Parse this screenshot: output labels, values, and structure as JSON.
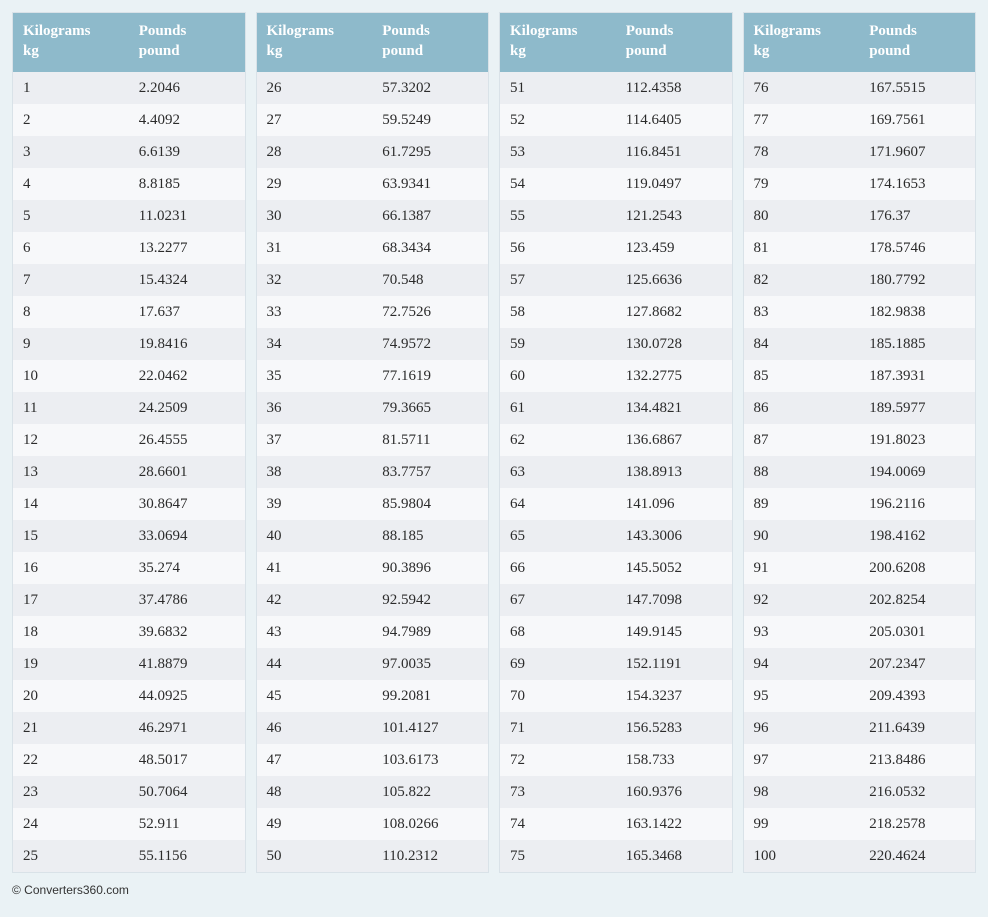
{
  "columns": {
    "kg": {
      "title": "Kilograms",
      "unit": "kg"
    },
    "lb": {
      "title": "Pounds",
      "unit": "pound"
    }
  },
  "panels": [
    [
      {
        "kg": "1",
        "lb": "2.2046"
      },
      {
        "kg": "2",
        "lb": "4.4092"
      },
      {
        "kg": "3",
        "lb": "6.6139"
      },
      {
        "kg": "4",
        "lb": "8.8185"
      },
      {
        "kg": "5",
        "lb": "11.0231"
      },
      {
        "kg": "6",
        "lb": "13.2277"
      },
      {
        "kg": "7",
        "lb": "15.4324"
      },
      {
        "kg": "8",
        "lb": "17.637"
      },
      {
        "kg": "9",
        "lb": "19.8416"
      },
      {
        "kg": "10",
        "lb": "22.0462"
      },
      {
        "kg": "11",
        "lb": "24.2509"
      },
      {
        "kg": "12",
        "lb": "26.4555"
      },
      {
        "kg": "13",
        "lb": "28.6601"
      },
      {
        "kg": "14",
        "lb": "30.8647"
      },
      {
        "kg": "15",
        "lb": "33.0694"
      },
      {
        "kg": "16",
        "lb": "35.274"
      },
      {
        "kg": "17",
        "lb": "37.4786"
      },
      {
        "kg": "18",
        "lb": "39.6832"
      },
      {
        "kg": "19",
        "lb": "41.8879"
      },
      {
        "kg": "20",
        "lb": "44.0925"
      },
      {
        "kg": "21",
        "lb": "46.2971"
      },
      {
        "kg": "22",
        "lb": "48.5017"
      },
      {
        "kg": "23",
        "lb": "50.7064"
      },
      {
        "kg": "24",
        "lb": "52.911"
      },
      {
        "kg": "25",
        "lb": "55.1156"
      }
    ],
    [
      {
        "kg": "26",
        "lb": "57.3202"
      },
      {
        "kg": "27",
        "lb": "59.5249"
      },
      {
        "kg": "28",
        "lb": "61.7295"
      },
      {
        "kg": "29",
        "lb": "63.9341"
      },
      {
        "kg": "30",
        "lb": "66.1387"
      },
      {
        "kg": "31",
        "lb": "68.3434"
      },
      {
        "kg": "32",
        "lb": "70.548"
      },
      {
        "kg": "33",
        "lb": "72.7526"
      },
      {
        "kg": "34",
        "lb": "74.9572"
      },
      {
        "kg": "35",
        "lb": "77.1619"
      },
      {
        "kg": "36",
        "lb": "79.3665"
      },
      {
        "kg": "37",
        "lb": "81.5711"
      },
      {
        "kg": "38",
        "lb": "83.7757"
      },
      {
        "kg": "39",
        "lb": "85.9804"
      },
      {
        "kg": "40",
        "lb": "88.185"
      },
      {
        "kg": "41",
        "lb": "90.3896"
      },
      {
        "kg": "42",
        "lb": "92.5942"
      },
      {
        "kg": "43",
        "lb": "94.7989"
      },
      {
        "kg": "44",
        "lb": "97.0035"
      },
      {
        "kg": "45",
        "lb": "99.2081"
      },
      {
        "kg": "46",
        "lb": "101.4127"
      },
      {
        "kg": "47",
        "lb": "103.6173"
      },
      {
        "kg": "48",
        "lb": "105.822"
      },
      {
        "kg": "49",
        "lb": "108.0266"
      },
      {
        "kg": "50",
        "lb": "110.2312"
      }
    ],
    [
      {
        "kg": "51",
        "lb": "112.4358"
      },
      {
        "kg": "52",
        "lb": "114.6405"
      },
      {
        "kg": "53",
        "lb": "116.8451"
      },
      {
        "kg": "54",
        "lb": "119.0497"
      },
      {
        "kg": "55",
        "lb": "121.2543"
      },
      {
        "kg": "56",
        "lb": "123.459"
      },
      {
        "kg": "57",
        "lb": "125.6636"
      },
      {
        "kg": "58",
        "lb": "127.8682"
      },
      {
        "kg": "59",
        "lb": "130.0728"
      },
      {
        "kg": "60",
        "lb": "132.2775"
      },
      {
        "kg": "61",
        "lb": "134.4821"
      },
      {
        "kg": "62",
        "lb": "136.6867"
      },
      {
        "kg": "63",
        "lb": "138.8913"
      },
      {
        "kg": "64",
        "lb": "141.096"
      },
      {
        "kg": "65",
        "lb": "143.3006"
      },
      {
        "kg": "66",
        "lb": "145.5052"
      },
      {
        "kg": "67",
        "lb": "147.7098"
      },
      {
        "kg": "68",
        "lb": "149.9145"
      },
      {
        "kg": "69",
        "lb": "152.1191"
      },
      {
        "kg": "70",
        "lb": "154.3237"
      },
      {
        "kg": "71",
        "lb": "156.5283"
      },
      {
        "kg": "72",
        "lb": "158.733"
      },
      {
        "kg": "73",
        "lb": "160.9376"
      },
      {
        "kg": "74",
        "lb": "163.1422"
      },
      {
        "kg": "75",
        "lb": "165.3468"
      }
    ],
    [
      {
        "kg": "76",
        "lb": "167.5515"
      },
      {
        "kg": "77",
        "lb": "169.7561"
      },
      {
        "kg": "78",
        "lb": "171.9607"
      },
      {
        "kg": "79",
        "lb": "174.1653"
      },
      {
        "kg": "80",
        "lb": "176.37"
      },
      {
        "kg": "81",
        "lb": "178.5746"
      },
      {
        "kg": "82",
        "lb": "180.7792"
      },
      {
        "kg": "83",
        "lb": "182.9838"
      },
      {
        "kg": "84",
        "lb": "185.1885"
      },
      {
        "kg": "85",
        "lb": "187.3931"
      },
      {
        "kg": "86",
        "lb": "189.5977"
      },
      {
        "kg": "87",
        "lb": "191.8023"
      },
      {
        "kg": "88",
        "lb": "194.0069"
      },
      {
        "kg": "89",
        "lb": "196.2116"
      },
      {
        "kg": "90",
        "lb": "198.4162"
      },
      {
        "kg": "91",
        "lb": "200.6208"
      },
      {
        "kg": "92",
        "lb": "202.8254"
      },
      {
        "kg": "93",
        "lb": "205.0301"
      },
      {
        "kg": "94",
        "lb": "207.2347"
      },
      {
        "kg": "95",
        "lb": "209.4393"
      },
      {
        "kg": "96",
        "lb": "211.6439"
      },
      {
        "kg": "97",
        "lb": "213.8486"
      },
      {
        "kg": "98",
        "lb": "216.0532"
      },
      {
        "kg": "99",
        "lb": "218.2578"
      },
      {
        "kg": "100",
        "lb": "220.4624"
      }
    ]
  ],
  "copyright": "© Converters360.com",
  "colors": {
    "page_bg": "#eaf2f5",
    "header_bg": "#8ebacb",
    "header_text": "#ffffff",
    "row_odd": "#eceef2",
    "row_even": "#f7f8fa",
    "cell_text": "#2b2b2b",
    "panel_border": "#d9e2e8"
  },
  "layout": {
    "panel_count": 4,
    "rows_per_panel": 25,
    "font_family": "Georgia serif",
    "header_fontsize": 15,
    "cell_fontsize": 15
  }
}
